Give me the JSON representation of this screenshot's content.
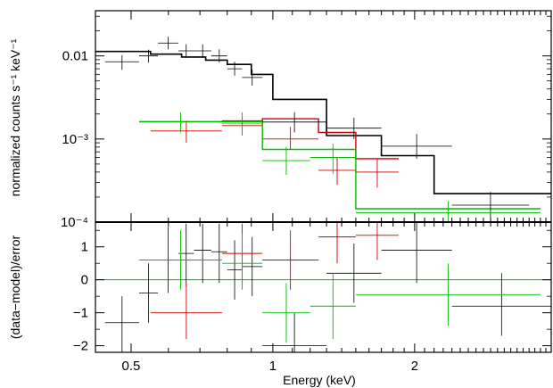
{
  "chart_data": [
    {
      "type": "step+errorbars",
      "panel": "spectrum",
      "ylabel": "normalized counts s⁻¹ keV⁻¹",
      "yscale": "log",
      "ylim": [
        0.0001,
        0.035
      ],
      "xscale": "log",
      "xlim": [
        0.42,
        3.9
      ],
      "yticks": [
        {
          "value": 0.01,
          "label": "0.01"
        },
        {
          "value": 0.001,
          "label": "10⁻³"
        },
        {
          "value": 0.0001,
          "label": "10⁻⁴"
        }
      ],
      "colors": {
        "black": "#000000",
        "red": "#cc0000",
        "green": "#00bb00"
      },
      "series": [
        {
          "color": "black",
          "model_steps": [
            [
              0.42,
              0.0113
            ],
            [
              0.55,
              0.0105
            ],
            [
              0.64,
              0.0097
            ],
            [
              0.72,
              0.0089
            ],
            [
              0.8,
              0.0079
            ],
            [
              0.9,
              0.006
            ],
            [
              1.0,
              0.003
            ],
            [
              1.3,
              0.0011
            ],
            [
              1.7,
              0.00063
            ],
            [
              2.2,
              0.00022
            ],
            [
              3.9,
              0.00022
            ]
          ],
          "points": [
            {
              "x0": 0.44,
              "x1": 0.52,
              "y": 0.0085,
              "ylo": 0.0068,
              "yhi": 0.0102
            },
            {
              "x0": 0.52,
              "x1": 0.57,
              "y": 0.01,
              "ylo": 0.0083,
              "yhi": 0.0119
            },
            {
              "x0": 0.57,
              "x1": 0.63,
              "y": 0.0143,
              "ylo": 0.012,
              "yhi": 0.017
            },
            {
              "x0": 0.63,
              "x1": 0.68,
              "y": 0.0115,
              "ylo": 0.0095,
              "yhi": 0.0138
            },
            {
              "x0": 0.68,
              "x1": 0.74,
              "y": 0.0115,
              "ylo": 0.0095,
              "yhi": 0.0138
            },
            {
              "x0": 0.74,
              "x1": 0.8,
              "y": 0.01,
              "ylo": 0.0083,
              "yhi": 0.012
            },
            {
              "x0": 0.8,
              "x1": 0.86,
              "y": 0.007,
              "ylo": 0.0058,
              "yhi": 0.0085
            },
            {
              "x0": 0.86,
              "x1": 0.95,
              "y": 0.0055,
              "ylo": 0.0044,
              "yhi": 0.0068
            },
            {
              "x0": 0.95,
              "x1": 1.3,
              "y": 0.0016,
              "ylo": 0.0012,
              "yhi": 0.0021
            },
            {
              "x0": 1.3,
              "x1": 1.7,
              "y": 0.00135,
              "ylo": 0.001,
              "yhi": 0.0018
            },
            {
              "x0": 1.7,
              "x1": 2.4,
              "y": 0.00082,
              "ylo": 0.00058,
              "yhi": 0.00115
            },
            {
              "x0": 2.4,
              "x1": 3.5,
              "y": 0.00016,
              "ylo": 0.00011,
              "yhi": 0.00023
            }
          ]
        },
        {
          "color": "red",
          "model_steps": [
            [
              0.78,
              0.00165
            ],
            [
              0.95,
              0.00175
            ],
            [
              1.25,
              0.0012
            ],
            [
              1.5,
              0.00058
            ],
            [
              1.85,
              0.00058
            ]
          ],
          "points": [
            {
              "x0": 0.55,
              "x1": 0.78,
              "y": 0.00125,
              "ylo": 0.0009,
              "yhi": 0.00165
            },
            {
              "x0": 0.78,
              "x1": 0.95,
              "y": 0.00145,
              "ylo": 0.0011,
              "yhi": 0.0019
            },
            {
              "x0": 0.95,
              "x1": 1.25,
              "y": 0.001,
              "ylo": 0.00075,
              "yhi": 0.0014
            },
            {
              "x0": 1.25,
              "x1": 1.5,
              "y": 0.00042,
              "ylo": 0.00028,
              "yhi": 0.0006
            },
            {
              "x0": 1.5,
              "x1": 1.85,
              "y": 0.0004,
              "ylo": 0.00026,
              "yhi": 0.00058
            }
          ]
        },
        {
          "color": "green",
          "model_steps": [
            [
              0.52,
              0.00162
            ],
            [
              0.95,
              0.00075
            ],
            [
              1.5,
              0.000145
            ],
            [
              3.7,
              0.000145
            ]
          ],
          "points": [
            {
              "x0": 0.52,
              "x1": 0.78,
              "y": 0.0016,
              "ylo": 0.0012,
              "yhi": 0.0021
            },
            {
              "x0": 0.78,
              "x1": 0.95,
              "y": 0.00155,
              "ylo": 0.0011,
              "yhi": 0.0021
            },
            {
              "x0": 0.95,
              "x1": 1.2,
              "y": 0.00055,
              "ylo": 0.00037,
              "yhi": 0.0008
            },
            {
              "x0": 1.2,
              "x1": 1.5,
              "y": 0.0006,
              "ylo": 0.00038,
              "yhi": 0.00088
            },
            {
              "x0": 1.5,
              "x1": 3.7,
              "y": 0.00013,
              "ylo": 9e-05,
              "yhi": 0.00018
            }
          ]
        }
      ]
    },
    {
      "type": "scatter+errorbars",
      "panel": "residuals",
      "xlabel": "Energy (keV)",
      "ylabel": "(data−model)/error",
      "xscale": "log",
      "xlim": [
        0.42,
        3.9
      ],
      "ylim": [
        -2.2,
        1.75
      ],
      "xticks": [
        {
          "value": 0.5,
          "label": "0.5"
        },
        {
          "value": 1,
          "label": "1"
        },
        {
          "value": 2,
          "label": "2"
        }
      ],
      "yticks": [
        {
          "value": 1,
          "label": "1"
        },
        {
          "value": 0,
          "label": "0"
        },
        {
          "value": -1,
          "label": "−1"
        },
        {
          "value": -2,
          "label": "−2"
        }
      ],
      "zero_line_color": "green",
      "series": [
        {
          "color": "black",
          "points": [
            {
              "x0": 0.44,
              "x1": 0.52,
              "y": -1.3,
              "ylo": -2.2,
              "yhi": -0.5
            },
            {
              "x0": 0.52,
              "x1": 0.57,
              "y": -0.4,
              "ylo": -1.3,
              "yhi": 0.5
            },
            {
              "x0": 0.57,
              "x1": 0.63,
              "y": 0.6,
              "ylo": -0.4,
              "yhi": 1.6
            },
            {
              "x0": 0.63,
              "x1": 0.68,
              "y": 0.8,
              "ylo": -0.2,
              "yhi": 1.7
            },
            {
              "x0": 0.68,
              "x1": 0.74,
              "y": 0.9,
              "ylo": -0.1,
              "yhi": 1.7
            },
            {
              "x0": 0.74,
              "x1": 0.8,
              "y": 0.85,
              "ylo": -0.1,
              "yhi": 1.7
            },
            {
              "x0": 0.8,
              "x1": 0.86,
              "y": 0.3,
              "ylo": -0.6,
              "yhi": 1.2
            },
            {
              "x0": 0.86,
              "x1": 0.95,
              "y": 0.4,
              "ylo": -0.5,
              "yhi": 1.3
            },
            {
              "x0": 0.95,
              "x1": 1.3,
              "y": -2.0,
              "ylo": -2.2,
              "yhi": -1.0
            },
            {
              "x0": 1.3,
              "x1": 1.7,
              "y": 0.2,
              "ylo": -0.7,
              "yhi": 1.1
            },
            {
              "x0": 1.7,
              "x1": 2.4,
              "y": 0.9,
              "ylo": -0.1,
              "yhi": 1.9
            },
            {
              "x0": 2.4,
              "x1": 3.9,
              "y": -0.8,
              "ylo": -1.7,
              "yhi": 0.2
            }
          ]
        },
        {
          "color": "red",
          "points": [
            {
              "x0": 0.55,
              "x1": 0.78,
              "y": -1.0,
              "ylo": -1.8,
              "yhi": -0.1
            },
            {
              "x0": 0.78,
              "x1": 0.95,
              "y": 0.8,
              "ylo": -0.1,
              "yhi": 1.7
            },
            {
              "x0": 0.95,
              "x1": 1.25,
              "y": 0.6,
              "ylo": -0.3,
              "yhi": 1.5
            },
            {
              "x0": 1.25,
              "x1": 1.5,
              "y": 1.3,
              "ylo": 0.5,
              "yhi": 2.1
            },
            {
              "x0": 1.5,
              "x1": 1.85,
              "y": 1.35,
              "ylo": 0.6,
              "yhi": 2.1
            }
          ]
        },
        {
          "color": "green",
          "points": [
            {
              "x0": 0.52,
              "x1": 0.78,
              "y": 0.6,
              "ylo": -0.3,
              "yhi": 1.5
            },
            {
              "x0": 0.78,
              "x1": 0.95,
              "y": 0.5,
              "ylo": -0.3,
              "yhi": 1.4
            },
            {
              "x0": 0.95,
              "x1": 1.2,
              "y": -1.0,
              "ylo": -1.9,
              "yhi": -0.1
            },
            {
              "x0": 1.2,
              "x1": 1.5,
              "y": -0.8,
              "ylo": -1.8,
              "yhi": 0.2
            },
            {
              "x0": 1.5,
              "x1": 3.7,
              "y": -0.45,
              "ylo": -1.4,
              "yhi": 0.5
            }
          ]
        }
      ]
    }
  ]
}
